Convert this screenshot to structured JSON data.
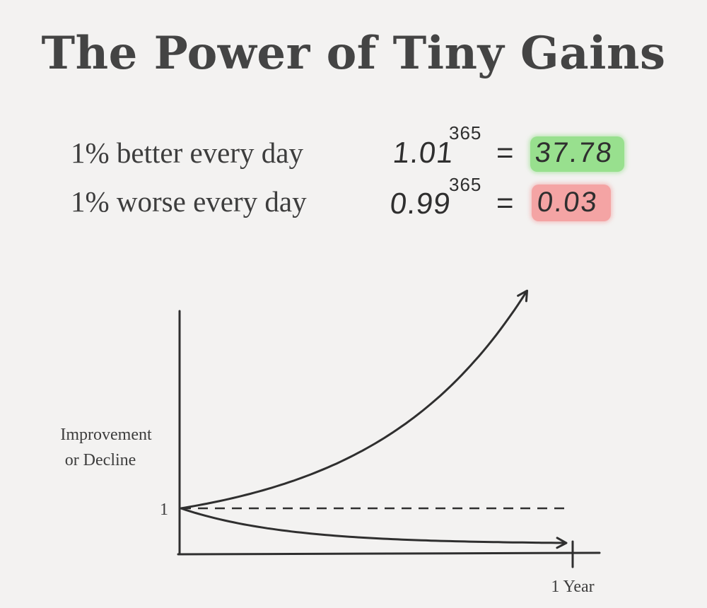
{
  "title": "The Power of Tiny Gains",
  "equations": [
    {
      "label": "1% better every day",
      "base": "1.01",
      "exponent": "365",
      "equals": "=",
      "result": "37.78",
      "highlight_color": "#98e08e"
    },
    {
      "label": "1% worse every day",
      "base": "0.99",
      "exponent": "365",
      "equals": "=",
      "result": "0.03",
      "highlight_color": "#f4a4a4"
    }
  ],
  "chart_data": {
    "type": "line",
    "ylabel_lines": [
      "Improvement",
      "or Decline"
    ],
    "y_tick_label": "1",
    "x_tick_label": "1 Year",
    "baseline_value": 1,
    "baseline_style": "dashed",
    "grid": false,
    "x_domain": [
      0,
      365
    ],
    "series": [
      {
        "growth_rate": 1.01,
        "days": 365,
        "end_value": 37.78
      },
      {
        "growth_rate": 0.99,
        "days": 365,
        "end_value": 0.03
      }
    ]
  }
}
